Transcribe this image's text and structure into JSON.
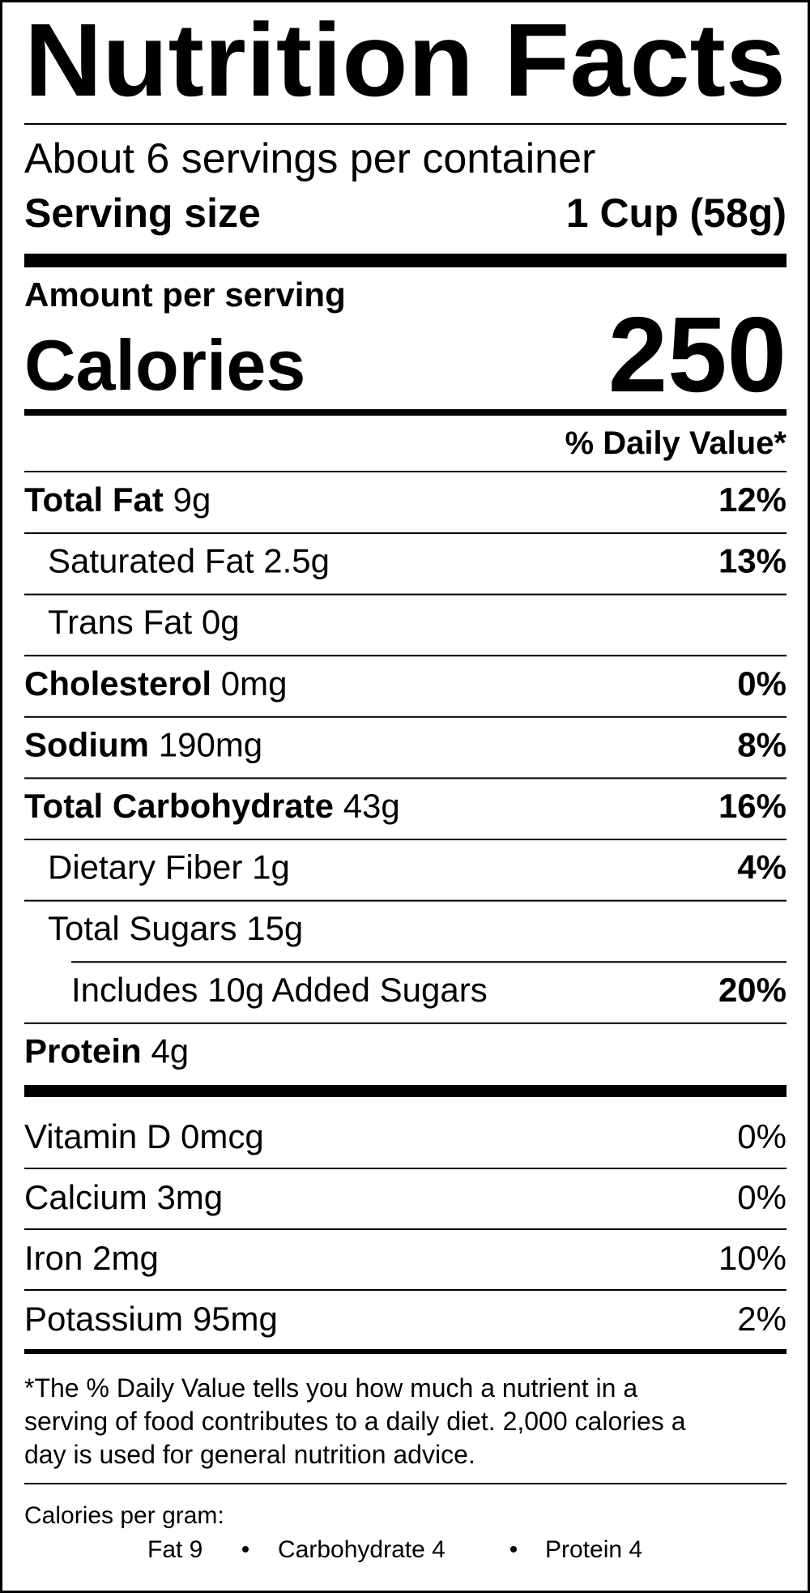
{
  "title": "Nutrition Facts",
  "servings_per_container": "About 6 servings per container",
  "serving_size": {
    "label": "Serving size",
    "value": "1 Cup (58g)"
  },
  "amount_per_serving": "Amount per serving",
  "calories": {
    "label": "Calories",
    "value": "250"
  },
  "daily_value_header": "% Daily Value*",
  "nutrients": [
    {
      "name": "Total Fat",
      "amount": "9g",
      "daily_value": "12%"
    },
    {
      "name": "Saturated Fat",
      "amount": "2.5g",
      "daily_value": "13%"
    },
    {
      "name": "Trans Fat",
      "amount": "0g"
    },
    {
      "name": "Cholesterol",
      "amount": "0mg",
      "daily_value": "0%"
    },
    {
      "name": "Sodium",
      "amount": "190mg",
      "daily_value": "8%"
    },
    {
      "name": "Total Carbohydrate",
      "amount": "43g",
      "daily_value": "16%"
    },
    {
      "name": "Dietary Fiber",
      "amount": "1g",
      "daily_value": "4%"
    },
    {
      "name": "Total Sugars",
      "amount": "15g"
    },
    {
      "name": "Includes 10g Added Sugars",
      "daily_value": "20%"
    },
    {
      "name": "Protein",
      "amount": "4g"
    }
  ],
  "vitamins": [
    {
      "name": "Vitamin D",
      "amount": "0mcg",
      "daily_value": "0%"
    },
    {
      "name": "Calcium",
      "amount": "3mg",
      "daily_value": "0%"
    },
    {
      "name": "Iron",
      "amount": "2mg",
      "daily_value": "10%"
    },
    {
      "name": "Potassium",
      "amount": "95mg",
      "daily_value": "2%"
    }
  ],
  "footnote": [
    "*The % Daily Value tells you how much a nutrient in a",
    "serving of food contributes to a daily diet. 2,000 calories a",
    "day is used for general nutrition advice."
  ],
  "calories_per_gram": {
    "label": "Calories per gram:",
    "items": [
      "Fat 9",
      "Carbohydrate 4",
      "Protein 4"
    ]
  }
}
